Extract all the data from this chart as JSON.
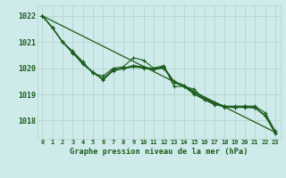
{
  "title": "Graphe pression niveau de la mer (hPa)",
  "bg_color": "#ceeaea",
  "grid_color": "#b8d8d0",
  "line_color": "#1a5c1a",
  "xlim": [
    -0.5,
    23.5
  ],
  "ylim": [
    1017.3,
    1022.4
  ],
  "yticks": [
    1018,
    1019,
    1020,
    1021,
    1022
  ],
  "xticks": [
    0,
    1,
    2,
    3,
    4,
    5,
    6,
    7,
    8,
    9,
    10,
    11,
    12,
    13,
    14,
    15,
    16,
    17,
    18,
    19,
    20,
    21,
    22,
    23
  ],
  "series": [
    [
      1022.0,
      1021.55,
      1021.0,
      1020.65,
      1020.25,
      1019.8,
      1019.7,
      1020.0,
      1020.05,
      1020.4,
      1020.3,
      1020.0,
      1020.1,
      1019.3,
      1019.3,
      1019.2,
      1018.8,
      1018.6,
      1018.55,
      1018.55,
      1018.55,
      1018.55,
      1018.3,
      1017.6
    ],
    [
      1022.0,
      1021.55,
      1021.0,
      1020.6,
      1020.2,
      1019.85,
      1019.6,
      1019.95,
      1020.0,
      1020.1,
      1020.05,
      1019.98,
      1020.05,
      1019.5,
      1019.35,
      1019.1,
      1018.85,
      1018.7,
      1018.55,
      1018.5,
      1018.55,
      1018.5,
      1018.2,
      1017.55
    ],
    [
      1022.0,
      1021.55,
      1021.0,
      1020.6,
      1020.15,
      1019.85,
      1019.55,
      1019.9,
      1019.98,
      1020.05,
      1020.0,
      1019.95,
      1020.0,
      1019.45,
      1019.3,
      1019.0,
      1018.8,
      1018.65,
      1018.5,
      1018.5,
      1018.5,
      1018.48,
      1018.18,
      1017.52
    ],
    [
      1022.0,
      1021.55,
      1021.0,
      1020.58,
      1020.18,
      1019.83,
      1019.57,
      1019.92,
      1019.99,
      1020.08,
      1020.02,
      1019.97,
      1020.02,
      1019.47,
      1019.32,
      1019.03,
      1018.82,
      1018.67,
      1018.52,
      1018.52,
      1018.52,
      1018.5,
      1018.19,
      1017.53
    ]
  ],
  "straight_line": [
    1022.0,
    1017.55
  ]
}
